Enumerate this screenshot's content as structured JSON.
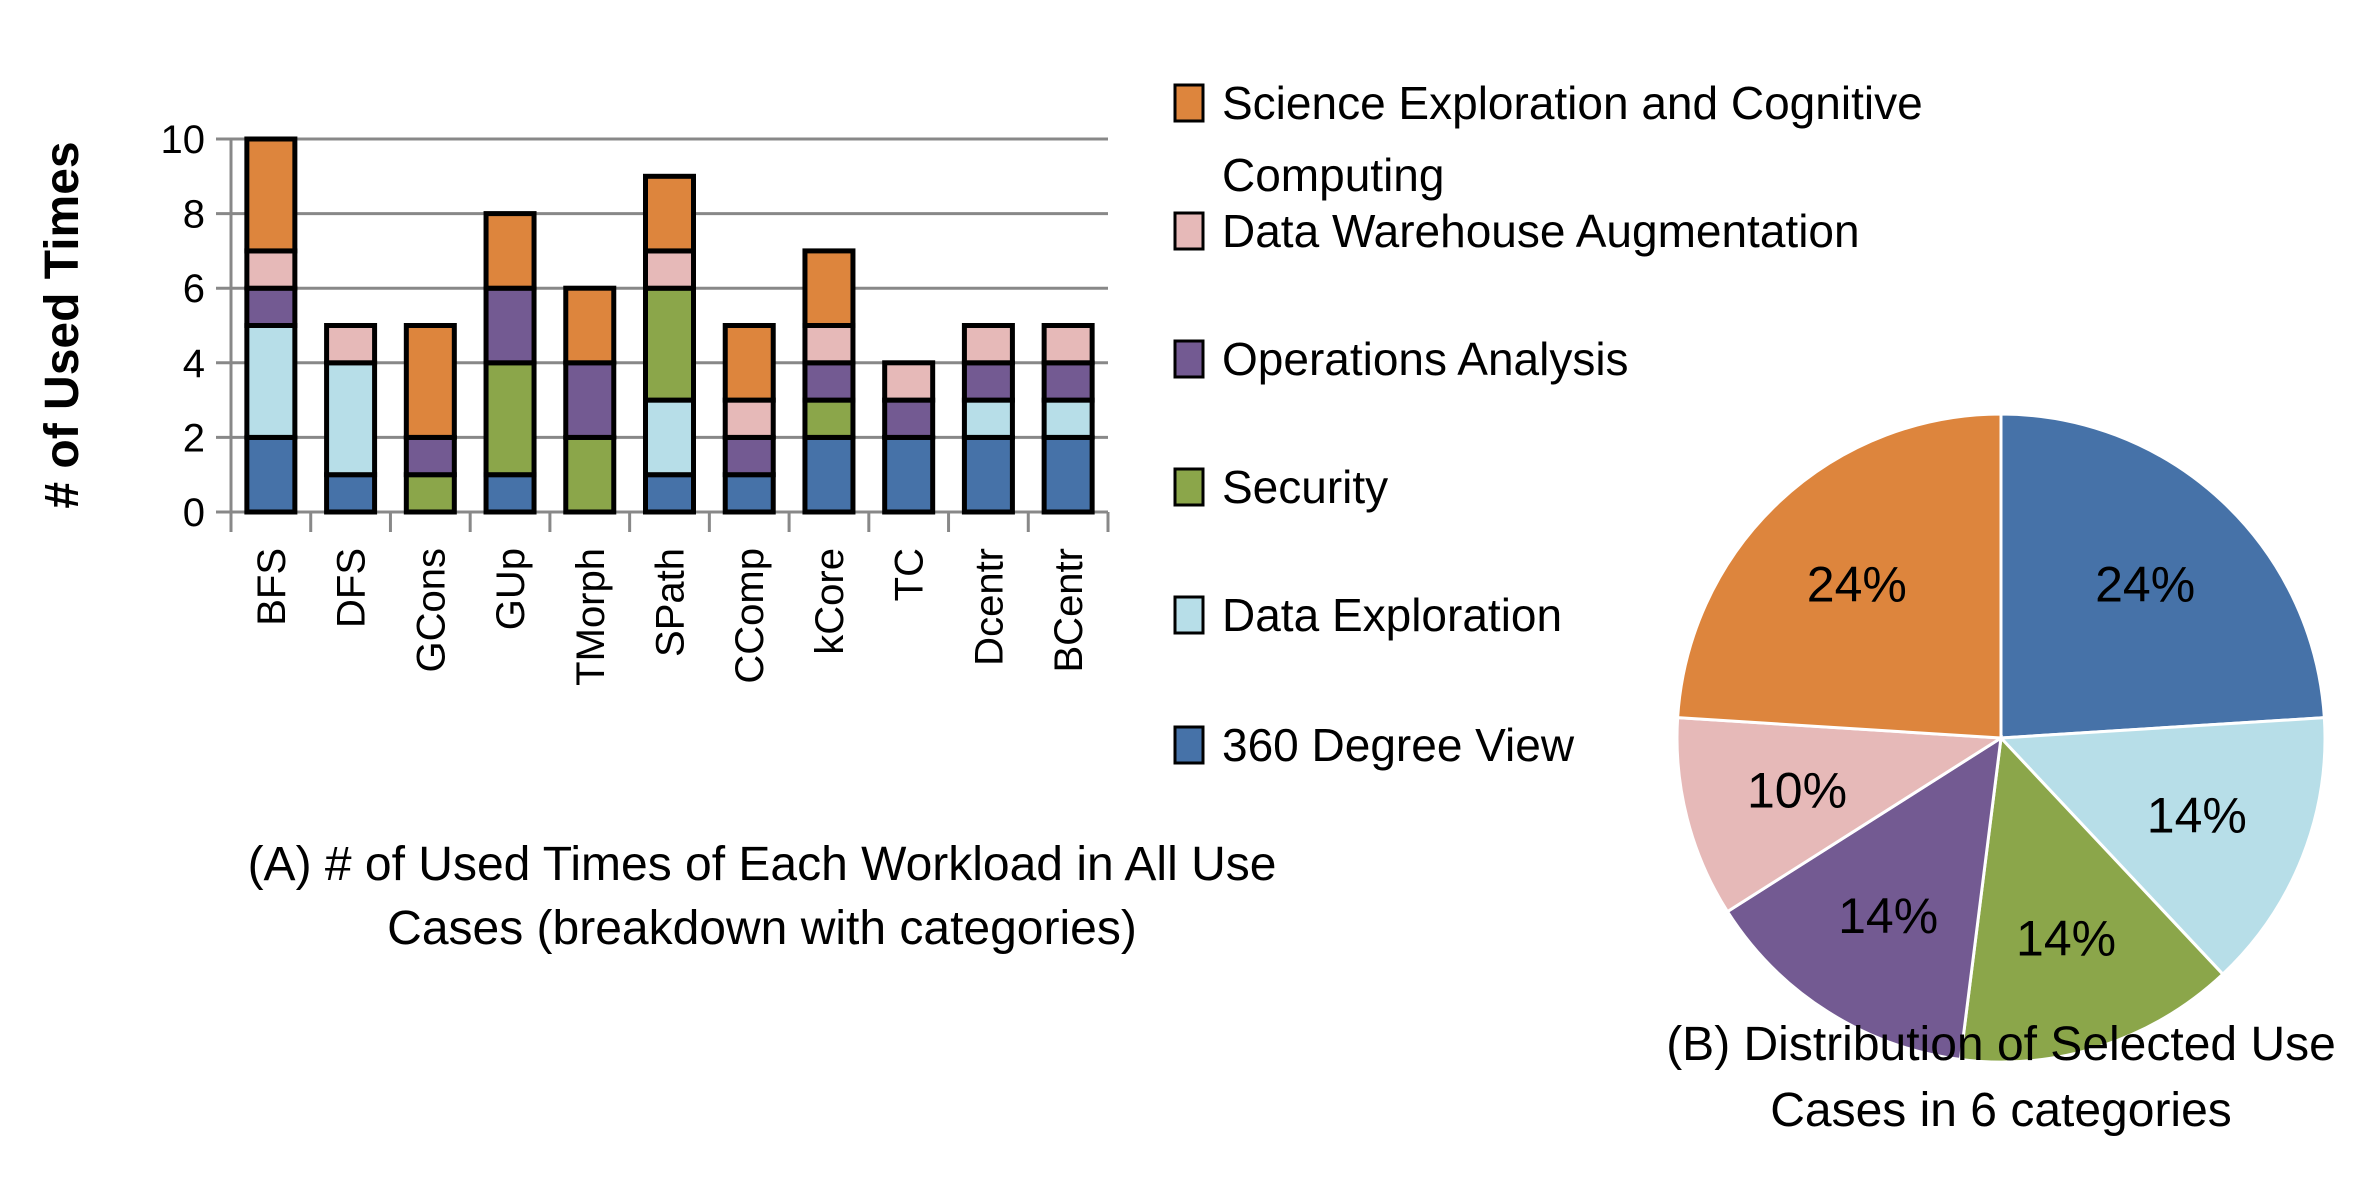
{
  "chart_data": [
    {
      "type": "bar",
      "stacked": true,
      "caption": [
        "(A) # of Used Times of Each Workload in All Use",
        "Cases (breakdown with categories)"
      ],
      "xlabel": "",
      "ylabel": "# of Used Times",
      "ylim": [
        0,
        10
      ],
      "yticks": [
        0,
        2,
        4,
        6,
        8,
        10
      ],
      "grid": true,
      "categories": [
        "BFS",
        "DFS",
        "GCons",
        "GUp",
        "TMorph",
        "SPath",
        "CComp",
        "kCore",
        "TC",
        "Dcentr",
        "BCentr"
      ],
      "series": [
        {
          "name": "360 Degree View",
          "color": "#4672A8",
          "values": [
            2,
            1,
            0,
            1,
            0,
            1,
            1,
            2,
            2,
            2,
            2
          ]
        },
        {
          "name": "Data Exploration",
          "color": "#B7DEE8",
          "values": [
            3,
            3,
            0,
            0,
            0,
            2,
            0,
            0,
            0,
            1,
            1
          ]
        },
        {
          "name": "Security",
          "color": "#8BA64A",
          "values": [
            0,
            0,
            1,
            3,
            2,
            3,
            0,
            1,
            0,
            0,
            0
          ]
        },
        {
          "name": "Operations Analysis",
          "color": "#735A92",
          "values": [
            1,
            0,
            1,
            2,
            2,
            0,
            1,
            1,
            1,
            1,
            1
          ]
        },
        {
          "name": "Data Warehouse Augmentation",
          "color": "#E6B9B8",
          "values": [
            1,
            1,
            0,
            0,
            0,
            1,
            1,
            1,
            1,
            1,
            1
          ]
        },
        {
          "name": "Science Exploration and Cognitive Computing",
          "color": "#DD853D",
          "values": [
            3,
            0,
            3,
            2,
            2,
            2,
            2,
            2,
            0,
            0,
            0
          ]
        }
      ],
      "legend": {
        "placement": "right",
        "entries": [
          {
            "lines": [
              "Science Exploration and Cognitive",
              "Computing"
            ],
            "color": "#DD853D"
          },
          {
            "lines": [
              "Data Warehouse Augmentation"
            ],
            "color": "#E6B9B8"
          },
          {
            "lines": [
              "Operations Analysis"
            ],
            "color": "#735A92"
          },
          {
            "lines": [
              "Security"
            ],
            "color": "#8BA64A"
          },
          {
            "lines": [
              "Data Exploration"
            ],
            "color": "#B7DEE8"
          },
          {
            "lines": [
              "360 Degree View"
            ],
            "color": "#4672A8"
          }
        ]
      }
    },
    {
      "type": "pie",
      "caption": [
        "(B) Distribution of Selected Use",
        "Cases in 6 categories"
      ],
      "slices": [
        {
          "category": "360 Degree View",
          "value": 24,
          "label": "24%",
          "color": "#4672A8"
        },
        {
          "category": "Data Exploration",
          "value": 14,
          "label": "14%",
          "color": "#B7DEE8"
        },
        {
          "category": "Security",
          "value": 14,
          "label": "14%",
          "color": "#8BA64A"
        },
        {
          "category": "Operations Analysis",
          "value": 14,
          "label": "14%",
          "color": "#735A92"
        },
        {
          "category": "Data Warehouse Augmentation",
          "value": 10,
          "label": "10%",
          "color": "#E6B9B8"
        },
        {
          "category": "Science Exploration and Cognitive Computing",
          "value": 24,
          "label": "24%",
          "color": "#DD853D"
        }
      ]
    }
  ]
}
